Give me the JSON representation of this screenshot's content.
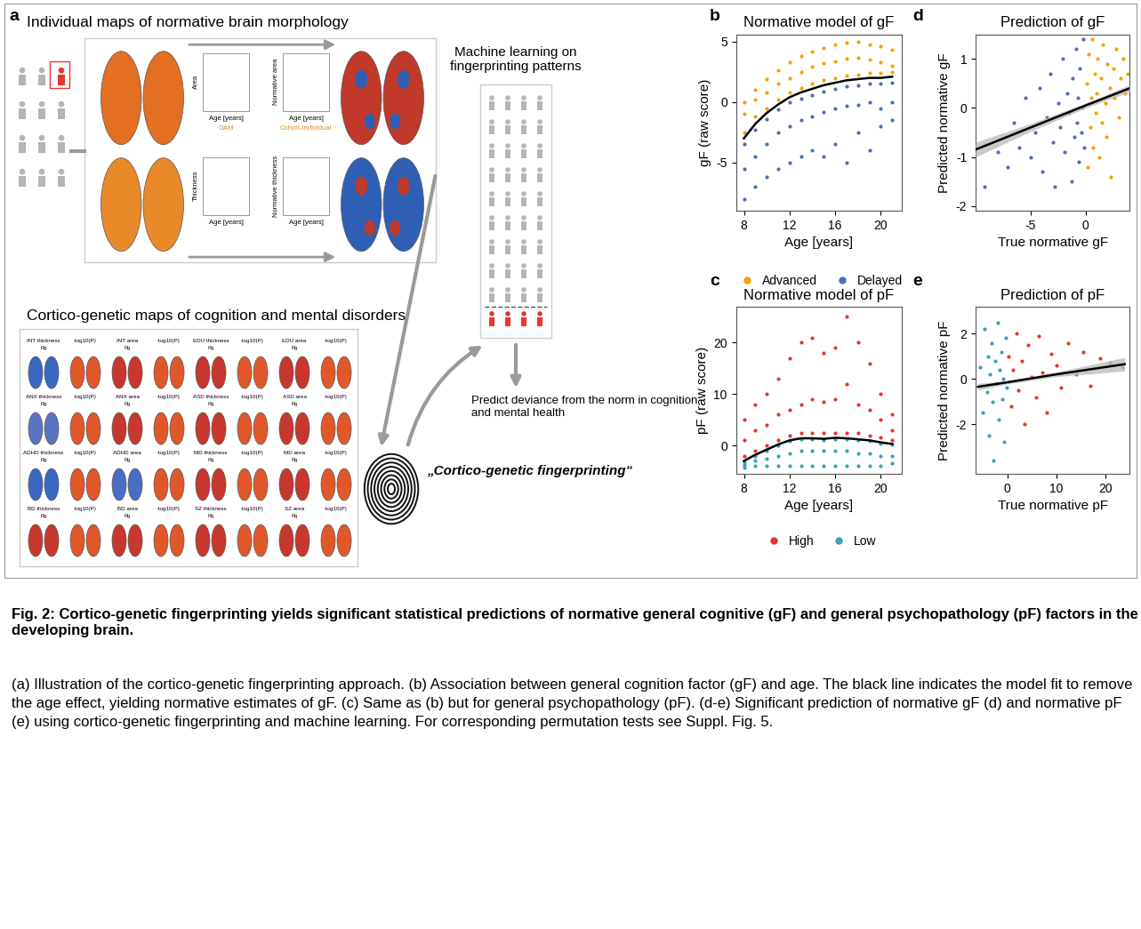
{
  "diagram": {
    "panel": "a",
    "brain_section": {
      "title": "Individual maps of normative brain morphology",
      "plots": [
        {
          "y_label": "Area",
          "x_label": "Age [years]",
          "key_text": "GAM"
        },
        {
          "y_label": "Normative area",
          "x_label": "Age [years]",
          "key_text": "Cohort-Individual"
        },
        {
          "y_label": "Thickness",
          "x_label": "Age [years]"
        },
        {
          "y_label": "Normative thickness",
          "x_label": "Age [years]"
        }
      ]
    },
    "maps_section": {
      "title": "Cortico-genetic maps of cognition and mental disorders",
      "maps": [
        {
          "label": "INT thickness",
          "sub": "Rg",
          "color": "#3a66c4"
        },
        {
          "label": "-log10(P)",
          "color": "#e0572a"
        },
        {
          "label": "INT area",
          "sub": "Rg",
          "color": "#c8372d"
        },
        {
          "label": "-log10(P)",
          "color": "#e0572a"
        },
        {
          "label": "EDU thickness",
          "sub": "Rg",
          "color": "#c8372d"
        },
        {
          "label": "-log10(P)",
          "color": "#e0572a"
        },
        {
          "label": "EDU area",
          "sub": "Rg",
          "color": "#c8372d"
        },
        {
          "label": "-log10(P)",
          "color": "#e0572a"
        },
        {
          "label": "ANX thickness",
          "sub": "Rg",
          "color": "#5a72c0"
        },
        {
          "label": "-log10(P)",
          "color": "#e0572a"
        },
        {
          "label": "ANX area",
          "sub": "Rg",
          "color": "#c8372d"
        },
        {
          "label": "-log10(P)",
          "color": "#e0572a"
        },
        {
          "label": "ASD thickness",
          "sub": "Rg",
          "color": "#c8372d"
        },
        {
          "label": "-log10(P)",
          "color": "#e0572a"
        },
        {
          "label": "ASD area",
          "sub": "Rg",
          "color": "#c8372d"
        },
        {
          "label": "-log10(P)",
          "color": "#e0572a"
        },
        {
          "label": "ADHD thickness",
          "sub": "Rg",
          "color": "#3a66c4"
        },
        {
          "label": "-log10(P)",
          "color": "#e0572a"
        },
        {
          "label": "ADHD area",
          "sub": "Rg",
          "color": "#4a6cc2"
        },
        {
          "label": "-log10(P)",
          "color": "#e0572a"
        },
        {
          "label": "MD thickness",
          "sub": "Rg",
          "color": "#c8372d"
        },
        {
          "label": "-log10(P)",
          "color": "#e0572a"
        },
        {
          "label": "MD area",
          "sub": "Rg",
          "color": "#c8372d"
        },
        {
          "label": "-log10(P)",
          "color": "#e0572a"
        },
        {
          "label": "BD thickness",
          "sub": "Rg",
          "color": "#c8372d"
        },
        {
          "label": "-log10(P)",
          "color": "#e0572a"
        },
        {
          "label": "BD area",
          "sub": "Rg",
          "color": "#c8372d"
        },
        {
          "label": "-log10(P)",
          "color": "#e0572a"
        },
        {
          "label": "SZ thickness",
          "sub": "Rg",
          "color": "#c8372d"
        },
        {
          "label": "-log10(P)",
          "color": "#e0572a"
        },
        {
          "label": "SZ area",
          "sub": "Rg",
          "color": "#c8372d"
        },
        {
          "label": "-log10(P)",
          "color": "#e0572a"
        }
      ]
    },
    "fingerprint_label": "„Cortico-genetic fingerprinting“",
    "ml_label": "Machine learning on\nfingerprinting patterns",
    "prediction_label": "Predict deviance from the norm in cognition\nand mental health"
  },
  "chart_data": [
    {
      "panel": "b",
      "type": "scatter",
      "title": "Normative model of gF",
      "x_label": "Age [years]",
      "y_label": "gF (raw score)",
      "xlim": [
        7.3,
        21.8
      ],
      "ylim": [
        -9,
        5.6
      ],
      "xticks": [
        8,
        12,
        16,
        20
      ],
      "yticks": [
        -5,
        0,
        5
      ],
      "grid": false,
      "legend": "bottom",
      "series": [
        {
          "name": "Advanced",
          "color": "#f5a300",
          "x": [
            8,
            8,
            8,
            9,
            9,
            9,
            10,
            10,
            10,
            11,
            11,
            11,
            12,
            12,
            12,
            13,
            13,
            13,
            14,
            14,
            14,
            15,
            15,
            15,
            16,
            16,
            16,
            17,
            17,
            17,
            18,
            18,
            18,
            19,
            19,
            19,
            20,
            20,
            20,
            21,
            21,
            21
          ],
          "values": [
            -2.5,
            -1.0,
            0.0,
            -1.2,
            0.2,
            1.0,
            -0.5,
            0.8,
            1.9,
            0.2,
            1.5,
            2.6,
            0.8,
            2.0,
            3.3,
            1.2,
            2.5,
            3.8,
            1.5,
            2.9,
            4.2,
            1.8,
            3.2,
            4.5,
            2.0,
            3.4,
            4.8,
            2.2,
            3.6,
            4.9,
            2.3,
            3.7,
            5.0,
            2.4,
            3.5,
            4.8,
            2.4,
            3.3,
            4.6,
            2.5,
            3.0,
            4.3
          ]
        },
        {
          "name": "Delayed",
          "color": "#4d6fb8",
          "x": [
            8,
            8,
            8,
            9,
            9,
            9,
            10,
            10,
            10,
            11,
            11,
            11,
            12,
            12,
            12,
            13,
            13,
            13,
            14,
            14,
            14,
            15,
            15,
            15,
            16,
            16,
            16,
            17,
            17,
            17,
            18,
            18,
            18,
            19,
            19,
            19,
            20,
            20,
            20,
            21,
            21,
            21
          ],
          "values": [
            -3.5,
            -5.5,
            -8.0,
            -2.3,
            -4.5,
            -7.0,
            -1.4,
            -3.5,
            -6.2,
            -0.6,
            -2.5,
            -5.5,
            0.0,
            -2.0,
            -5.0,
            0.3,
            -1.5,
            -4.5,
            0.6,
            -1.2,
            -4.0,
            0.9,
            -0.8,
            -4.5,
            1.1,
            -0.5,
            -3.5,
            1.3,
            -0.3,
            -5.0,
            1.4,
            -0.2,
            -2.5,
            1.5,
            0.0,
            -4.0,
            1.5,
            -0.5,
            -2.0,
            1.6,
            0.0,
            -1.5
          ]
        },
        {
          "type": "line",
          "color": "#000000",
          "x": [
            8,
            9,
            10,
            11,
            12,
            13,
            14,
            15,
            16,
            17,
            18,
            19,
            20,
            21
          ],
          "values": [
            -3.0,
            -1.8,
            -0.9,
            -0.2,
            0.4,
            0.8,
            1.1,
            1.4,
            1.6,
            1.8,
            1.9,
            2.0,
            2.0,
            2.1
          ]
        }
      ]
    },
    {
      "panel": "c",
      "type": "scatter",
      "title": "Normative model of pF",
      "x_label": "Age [years]",
      "y_label": "pF (raw score)",
      "xlim": [
        7.3,
        21.8
      ],
      "ylim": [
        -5.5,
        27
      ],
      "xticks": [
        8,
        12,
        16,
        20
      ],
      "yticks": [
        0,
        10,
        20
      ],
      "grid": false,
      "legend": "bottom",
      "series": [
        {
          "name": "High",
          "color": "#e8352e",
          "x": [
            8,
            8,
            8,
            9,
            9,
            9,
            10,
            10,
            10,
            11,
            11,
            11,
            12,
            12,
            12,
            13,
            13,
            13,
            14,
            14,
            14,
            15,
            15,
            15,
            16,
            16,
            16,
            17,
            17,
            17,
            18,
            18,
            18,
            19,
            19,
            19,
            20,
            20,
            20,
            21,
            21,
            21
          ],
          "values": [
            -2.0,
            1.0,
            5.0,
            -1.0,
            3.0,
            8.0,
            0.0,
            4.0,
            10.0,
            1.0,
            6.0,
            13.0,
            2.0,
            7.0,
            17.0,
            2.5,
            8.0,
            20.0,
            2.5,
            9.0,
            21.0,
            2.5,
            8.5,
            18.0,
            2.5,
            9.0,
            19.0,
            2.5,
            12.0,
            25.0,
            2.5,
            8.0,
            20.0,
            2.0,
            7.0,
            16.0,
            1.5,
            5.0,
            10.0,
            1.0,
            3.0,
            6.0
          ]
        },
        {
          "name": "Low",
          "color": "#35a2b8",
          "x": [
            8,
            8,
            8,
            9,
            9,
            9,
            10,
            10,
            10,
            11,
            11,
            11,
            12,
            12,
            12,
            13,
            13,
            13,
            14,
            14,
            14,
            15,
            15,
            15,
            16,
            16,
            16,
            17,
            17,
            17,
            18,
            18,
            18,
            19,
            19,
            19,
            20,
            20,
            20,
            21,
            21,
            21
          ],
          "values": [
            -3.3,
            -3.8,
            -4.3,
            -2.0,
            -3.0,
            -4.0,
            -1.0,
            -2.5,
            -4.0,
            0.0,
            -2.0,
            -4.0,
            0.8,
            -1.5,
            -4.0,
            1.2,
            -1.0,
            -4.0,
            1.2,
            -1.0,
            -4.0,
            1.1,
            -1.0,
            -4.0,
            1.3,
            -1.0,
            -4.0,
            1.2,
            -1.0,
            -4.0,
            1.0,
            -1.5,
            -4.0,
            0.8,
            -1.5,
            -4.0,
            0.4,
            -2.0,
            -4.0,
            0.2,
            -2.0,
            -3.5
          ]
        },
        {
          "type": "line",
          "color": "#000000",
          "x": [
            8,
            9,
            10,
            11,
            12,
            13,
            14,
            15,
            16,
            17,
            18,
            19,
            20,
            21
          ],
          "values": [
            -3.0,
            -1.8,
            -0.8,
            0.2,
            1.0,
            1.4,
            1.4,
            1.3,
            1.5,
            1.4,
            1.2,
            1.0,
            0.6,
            0.3
          ]
        }
      ]
    },
    {
      "panel": "d",
      "type": "scatter",
      "title": "Prediction of gF",
      "x_label": "True normative gF",
      "y_label": "Predicted normative gF",
      "xlim": [
        -10,
        4
      ],
      "ylim": [
        -2.1,
        1.5
      ],
      "xticks": [
        -5,
        0
      ],
      "yticks": [
        -2,
        -1,
        0,
        1
      ],
      "grid": false,
      "series": [
        {
          "color": "#4d6fb8",
          "x": [
            -9.2,
            -8.0,
            -7.1,
            -6.5,
            -6.0,
            -5.5,
            -5.0,
            -4.6,
            -4.2,
            -3.9,
            -3.5,
            -3.2,
            -3.0,
            -2.8,
            -2.5,
            -2.3,
            -2.1,
            -1.9,
            -1.7,
            -1.5,
            -1.3,
            -1.2,
            -1.0,
            -0.9,
            -0.8,
            -0.7,
            -0.6,
            -0.5,
            -0.4,
            -0.3,
            -0.2,
            -0.1
          ],
          "values": [
            -1.6,
            -0.9,
            -1.2,
            -0.3,
            -0.8,
            0.2,
            -1.0,
            -0.5,
            0.4,
            -1.3,
            -0.2,
            0.7,
            -0.7,
            -1.6,
            0.1,
            -0.4,
            1.0,
            -0.9,
            0.3,
            -0.1,
            -1.5,
            0.6,
            -0.6,
            1.2,
            -0.3,
            0.2,
            -1.1,
            0.8,
            -0.5,
            0.0,
            1.4,
            -0.8
          ]
        },
        {
          "color": "#f5a300",
          "x": [
            0.1,
            0.2,
            0.3,
            0.4,
            0.5,
            0.6,
            0.7,
            0.8,
            0.9,
            1.0,
            1.1,
            1.2,
            1.4,
            1.5,
            1.6,
            1.8,
            1.9,
            2.0,
            2.2,
            2.3,
            2.5,
            2.6,
            2.8,
            3.0,
            3.2,
            3.4,
            3.6,
            3.8
          ],
          "values": [
            0.5,
            -1.2,
            1.1,
            -0.4,
            0.2,
            1.4,
            -0.8,
            0.7,
            -0.1,
            0.3,
            1.0,
            -1.0,
            0.6,
            -0.3,
            1.3,
            0.1,
            -0.6,
            0.9,
            0.4,
            -1.4,
            0.8,
            0.2,
            1.2,
            -0.2,
            0.6,
            1.0,
            0.3,
            0.7
          ]
        },
        {
          "type": "line",
          "color": "#000000",
          "x": [
            -10,
            -5,
            0,
            4
          ],
          "values": [
            -0.85,
            -0.4,
            0.05,
            0.4
          ],
          "ci_low": [
            -1.0,
            -0.48,
            0.0,
            0.33
          ],
          "ci_high": [
            -0.7,
            -0.32,
            0.1,
            0.47
          ]
        }
      ]
    },
    {
      "panel": "e",
      "type": "scatter",
      "title": "Prediction of pF",
      "x_label": "True normative pF",
      "y_label": "Predicted normative pF",
      "xlim": [
        -6.5,
        25
      ],
      "ylim": [
        -4.2,
        3.2
      ],
      "xticks": [
        0,
        10,
        20
      ],
      "yticks": [
        -2,
        0,
        2
      ],
      "grid": false,
      "series": [
        {
          "color": "#35a2b8",
          "x": [
            -5.5,
            -5.0,
            -4.6,
            -4.2,
            -4.0,
            -3.7,
            -3.5,
            -3.2,
            -3.0,
            -2.8,
            -2.5,
            -2.3,
            -2.0,
            -1.8,
            -1.5,
            -1.3,
            -1.0,
            -0.8,
            -0.6,
            -0.4,
            -0.2
          ],
          "values": [
            0.5,
            -1.5,
            2.2,
            -0.6,
            1.0,
            -2.5,
            0.2,
            1.6,
            -1.0,
            -3.6,
            0.8,
            -0.2,
            2.5,
            -1.8,
            0.4,
            1.2,
            -0.9,
            0.0,
            -2.8,
            1.8,
            -0.4
          ]
        },
        {
          "color": "#e8352e",
          "x": [
            0.3,
            0.8,
            1.2,
            1.8,
            2.3,
            3.0,
            3.5,
            4.2,
            5.0,
            5.8,
            6.5,
            7.2,
            8.0,
            9.0,
            10.0,
            11.0,
            12.5,
            14.0,
            15.5,
            17.0,
            19.0,
            21.0,
            23.5
          ],
          "values": [
            1.0,
            -1.2,
            0.4,
            2.0,
            -0.5,
            0.8,
            -2.0,
            1.5,
            0.1,
            -0.8,
            1.9,
            0.3,
            -1.5,
            1.1,
            0.6,
            -0.4,
            1.6,
            0.2,
            1.2,
            -0.3,
            0.9,
            0.7,
            0.5
          ]
        },
        {
          "type": "line",
          "color": "#000000",
          "x": [
            -6,
            0,
            10,
            24
          ],
          "values": [
            -0.35,
            -0.15,
            0.2,
            0.65
          ],
          "ci_low": [
            -0.5,
            -0.22,
            0.1,
            0.35
          ],
          "ci_high": [
            -0.2,
            -0.08,
            0.3,
            0.95
          ]
        }
      ]
    }
  ],
  "caption": {
    "title": "Fig. 2: Cortico-genetic fingerprinting yields significant statistical predictions of normative general cognitive (gF) and general psychopathology (pF) factors in the developing brain.",
    "text": "(a) Illustration of the cortico-genetic fingerprinting approach. (b) Association between general cognition factor (gF) and age. The black line indicates the model fit to remove the age effect, yielding normative estimates of gF. (c) Same as (b) but for general psychopathology (pF). (d-e) Significant prediction of normative gF (d) and normative pF (e) using cortico-genetic fingerprinting and machine learning. For corresponding permutation tests see Suppl. Fig. 5."
  }
}
